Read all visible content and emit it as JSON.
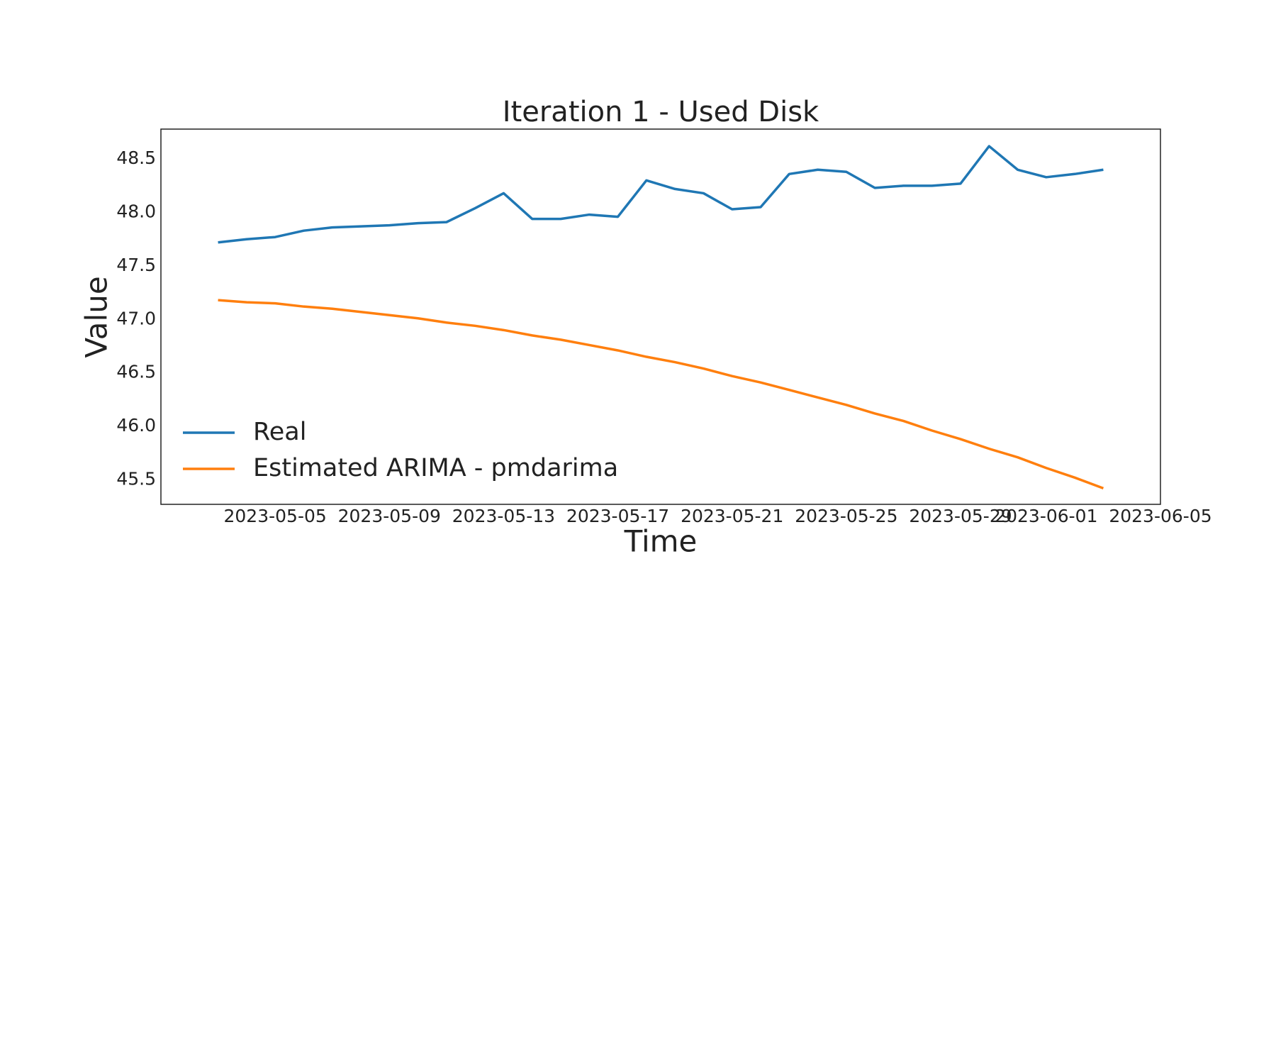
{
  "chart_data": {
    "type": "line",
    "title": "Iteration 1 - Used Disk",
    "x_label": "Time",
    "y_label": "Value",
    "x": [
      "2023-05-03",
      "2023-05-04",
      "2023-05-05",
      "2023-05-06",
      "2023-05-07",
      "2023-05-08",
      "2023-05-09",
      "2023-05-10",
      "2023-05-11",
      "2023-05-12",
      "2023-05-13",
      "2023-05-14",
      "2023-05-15",
      "2023-05-16",
      "2023-05-17",
      "2023-05-18",
      "2023-05-19",
      "2023-05-20",
      "2023-05-21",
      "2023-05-22",
      "2023-05-23",
      "2023-05-24",
      "2023-05-25",
      "2023-05-26",
      "2023-05-27",
      "2023-05-28",
      "2023-05-29",
      "2023-05-30",
      "2023-05-31",
      "2023-06-01",
      "2023-06-02",
      "2023-06-03"
    ],
    "series": [
      {
        "name": "Real",
        "color": "#1f77b4",
        "values": [
          47.72,
          47.75,
          47.77,
          47.83,
          47.86,
          47.87,
          47.88,
          47.9,
          47.91,
          48.04,
          48.18,
          47.94,
          47.94,
          47.98,
          47.96,
          48.3,
          48.22,
          48.18,
          48.03,
          48.05,
          48.36,
          48.4,
          48.38,
          48.23,
          48.25,
          48.25,
          48.27,
          48.62,
          48.4,
          48.33,
          48.36,
          48.4
        ]
      },
      {
        "name": "Estimated ARIMA - pmdarima",
        "color": "#ff7f0e",
        "values": [
          47.18,
          47.16,
          47.15,
          47.12,
          47.1,
          47.07,
          47.04,
          47.01,
          46.97,
          46.94,
          46.9,
          46.85,
          46.81,
          46.76,
          46.71,
          46.65,
          46.6,
          46.54,
          46.47,
          46.41,
          46.34,
          46.27,
          46.2,
          46.12,
          46.05,
          45.96,
          45.88,
          45.79,
          45.71,
          45.61,
          45.52,
          45.42
        ]
      }
    ],
    "xlim": [
      "2023-05-01",
      "2023-06-05"
    ],
    "xticks": [
      "2023-05-05",
      "2023-05-09",
      "2023-05-13",
      "2023-05-17",
      "2023-05-21",
      "2023-05-25",
      "2023-05-29",
      "2023-06-01",
      "2023-06-05"
    ],
    "ylim": [
      45.27,
      48.78
    ],
    "yticks": [
      {
        "value": 45.5,
        "label": "45.5"
      },
      {
        "value": 46,
        "label": "46.0"
      },
      {
        "value": 46.5,
        "label": "46.5"
      },
      {
        "value": 47,
        "label": "47.0"
      },
      {
        "value": 47.5,
        "label": "47.5"
      },
      {
        "value": 48,
        "label": "48.0"
      },
      {
        "value": 48.5,
        "label": "48.5"
      }
    ],
    "grid": false,
    "legend": "lower left"
  }
}
